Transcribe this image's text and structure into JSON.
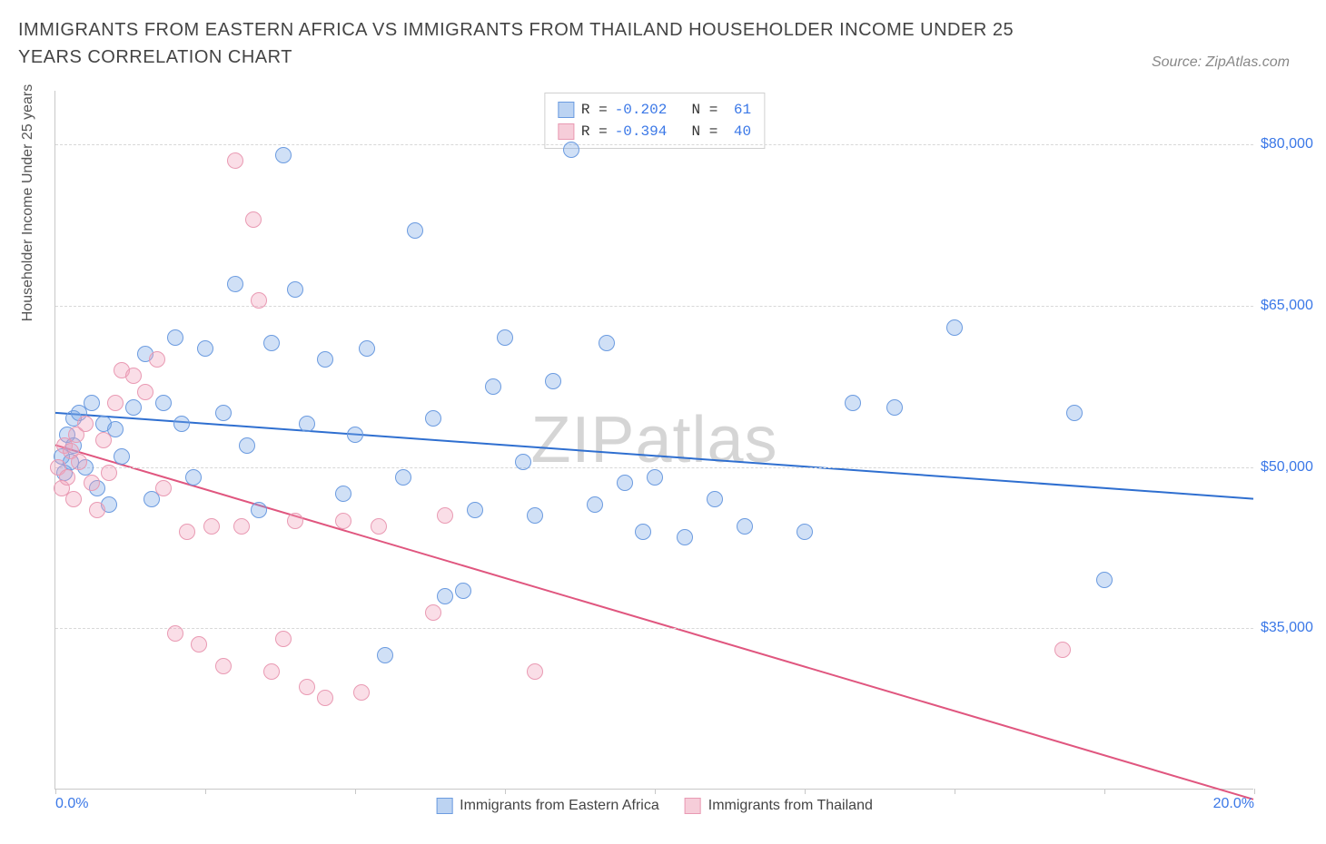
{
  "title": "IMMIGRANTS FROM EASTERN AFRICA VS IMMIGRANTS FROM THAILAND HOUSEHOLDER INCOME UNDER 25 YEARS CORRELATION CHART",
  "source": "Source: ZipAtlas.com",
  "watermark_bold": "ZIP",
  "watermark_thin": "atlas",
  "chart": {
    "type": "scatter",
    "background_color": "#ffffff",
    "grid_color": "#d8d8d8",
    "axis_color": "#c8c8c8",
    "tick_label_color": "#3b78e7",
    "x": {
      "min": 0.0,
      "max": 20.0,
      "ticks": [
        0,
        2.5,
        5,
        7.5,
        10,
        12.5,
        15,
        17.5,
        20
      ],
      "labels": {
        "0": "0.0%",
        "20": "20.0%"
      }
    },
    "y": {
      "min": 20000,
      "max": 85000,
      "gridlines": [
        35000,
        50000,
        65000,
        80000
      ],
      "tick_labels": [
        "$35,000",
        "$50,000",
        "$65,000",
        "$80,000"
      ]
    },
    "y_axis_label": "Householder Income Under 25 years",
    "marker_radius": 9,
    "marker_stroke_width": 1,
    "trend_line_width": 2,
    "series": [
      {
        "name": "Immigrants from Eastern Africa",
        "color_fill": "rgba(120,165,230,0.35)",
        "color_stroke": "#6b9be0",
        "color_line": "#2f6fd0",
        "swatch_fill": "#bcd3f2",
        "swatch_border": "#6b9be0",
        "R": "-0.202",
        "N": "61",
        "trend": {
          "x1": 0.0,
          "y1": 55000,
          "x2": 20.0,
          "y2": 47000
        },
        "points": [
          [
            0.1,
            51000
          ],
          [
            0.15,
            49500
          ],
          [
            0.2,
            53000
          ],
          [
            0.25,
            50500
          ],
          [
            0.3,
            52000
          ],
          [
            0.3,
            54500
          ],
          [
            0.4,
            55000
          ],
          [
            0.5,
            50000
          ],
          [
            0.6,
            56000
          ],
          [
            0.7,
            48000
          ],
          [
            0.8,
            54000
          ],
          [
            0.9,
            46500
          ],
          [
            1.0,
            53500
          ],
          [
            1.1,
            51000
          ],
          [
            1.3,
            55500
          ],
          [
            1.5,
            60500
          ],
          [
            1.6,
            47000
          ],
          [
            1.8,
            56000
          ],
          [
            2.0,
            62000
          ],
          [
            2.1,
            54000
          ],
          [
            2.3,
            49000
          ],
          [
            2.5,
            61000
          ],
          [
            2.8,
            55000
          ],
          [
            3.0,
            67000
          ],
          [
            3.2,
            52000
          ],
          [
            3.4,
            46000
          ],
          [
            3.6,
            61500
          ],
          [
            3.8,
            79000
          ],
          [
            4.0,
            66500
          ],
          [
            4.2,
            54000
          ],
          [
            4.5,
            60000
          ],
          [
            4.8,
            47500
          ],
          [
            5.0,
            53000
          ],
          [
            5.2,
            61000
          ],
          [
            5.5,
            32500
          ],
          [
            5.8,
            49000
          ],
          [
            6.0,
            72000
          ],
          [
            6.3,
            54500
          ],
          [
            6.5,
            38000
          ],
          [
            6.8,
            38500
          ],
          [
            7.0,
            46000
          ],
          [
            7.3,
            57500
          ],
          [
            7.5,
            62000
          ],
          [
            7.8,
            50500
          ],
          [
            8.0,
            45500
          ],
          [
            8.3,
            58000
          ],
          [
            8.6,
            79500
          ],
          [
            9.0,
            46500
          ],
          [
            9.2,
            61500
          ],
          [
            9.5,
            48500
          ],
          [
            9.8,
            44000
          ],
          [
            10.0,
            49000
          ],
          [
            10.5,
            43500
          ],
          [
            11.0,
            47000
          ],
          [
            11.5,
            44500
          ],
          [
            12.5,
            44000
          ],
          [
            13.3,
            56000
          ],
          [
            14.0,
            55500
          ],
          [
            15.0,
            63000
          ],
          [
            17.0,
            55000
          ],
          [
            17.5,
            39500
          ]
        ]
      },
      {
        "name": "Immigrants from Thailand",
        "color_fill": "rgba(240,160,185,0.35)",
        "color_stroke": "#e99ab3",
        "color_line": "#e0567f",
        "swatch_fill": "#f6cdd9",
        "swatch_border": "#e99ab3",
        "R": "-0.394",
        "N": "40",
        "trend": {
          "x1": 0.0,
          "y1": 52000,
          "x2": 20.0,
          "y2": 19000
        },
        "points": [
          [
            0.05,
            50000
          ],
          [
            0.1,
            48000
          ],
          [
            0.15,
            52000
          ],
          [
            0.2,
            49000
          ],
          [
            0.25,
            51500
          ],
          [
            0.3,
            47000
          ],
          [
            0.35,
            53000
          ],
          [
            0.4,
            50500
          ],
          [
            0.5,
            54000
          ],
          [
            0.6,
            48500
          ],
          [
            0.7,
            46000
          ],
          [
            0.8,
            52500
          ],
          [
            0.9,
            49500
          ],
          [
            1.0,
            56000
          ],
          [
            1.1,
            59000
          ],
          [
            1.3,
            58500
          ],
          [
            1.5,
            57000
          ],
          [
            1.7,
            60000
          ],
          [
            1.8,
            48000
          ],
          [
            2.0,
            34500
          ],
          [
            2.2,
            44000
          ],
          [
            2.4,
            33500
          ],
          [
            2.6,
            44500
          ],
          [
            2.8,
            31500
          ],
          [
            3.0,
            78500
          ],
          [
            3.1,
            44500
          ],
          [
            3.3,
            73000
          ],
          [
            3.4,
            65500
          ],
          [
            3.6,
            31000
          ],
          [
            3.8,
            34000
          ],
          [
            4.0,
            45000
          ],
          [
            4.2,
            29500
          ],
          [
            4.5,
            28500
          ],
          [
            4.8,
            45000
          ],
          [
            5.1,
            29000
          ],
          [
            5.4,
            44500
          ],
          [
            6.3,
            36500
          ],
          [
            6.5,
            45500
          ],
          [
            8.0,
            31000
          ],
          [
            16.8,
            33000
          ]
        ]
      }
    ],
    "legend_bottom": [
      {
        "label": "Immigrants from Eastern Africa",
        "swatch_fill": "#bcd3f2",
        "swatch_border": "#6b9be0"
      },
      {
        "label": "Immigrants from Thailand",
        "swatch_fill": "#f6cdd9",
        "swatch_border": "#e99ab3"
      }
    ]
  }
}
